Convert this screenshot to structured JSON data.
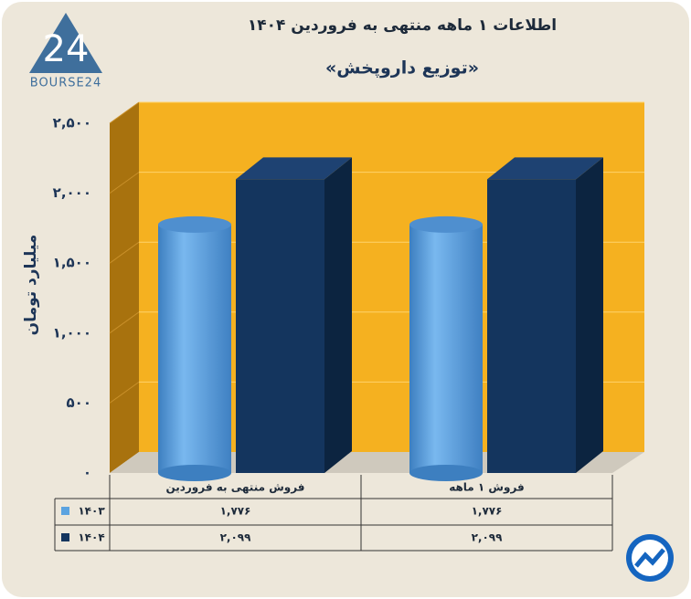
{
  "chart_data": {
    "type": "bar3d",
    "title": "اطلاعات ۱ ماهه منتهی به فروردین ۱۴۰۴",
    "subtitle": "«توزیع داروپخش»",
    "y_label": "میلیارد تومان",
    "logo": {
      "mark": "24",
      "text": "BOURSE24"
    },
    "categories": [
      "فروش منتهی به  فروردین",
      "فروش ۱  ماهه"
    ],
    "series": [
      {
        "name": "۱۴۰۳",
        "color": "#5ba3e0",
        "shape": "cylinder",
        "values": [
          1776,
          1776
        ],
        "value_labels": [
          "۱,۷۷۶",
          "۱,۷۷۶"
        ]
      },
      {
        "name": "۱۴۰۴",
        "color": "#14355e",
        "shape": "box",
        "values": [
          2099,
          2099
        ],
        "value_labels": [
          "۲,۰۹۹",
          "۲,۰۹۹"
        ]
      }
    ],
    "ylim": [
      0,
      2500
    ],
    "yticks": [
      {
        "value": 0,
        "label": "۰"
      },
      {
        "value": 500,
        "label": "۵۰۰"
      },
      {
        "value": 1000,
        "label": "۱,۰۰۰"
      },
      {
        "value": 1500,
        "label": "۱,۵۰۰"
      },
      {
        "value": 2000,
        "label": "۲,۰۰۰"
      },
      {
        "value": 2500,
        "label": "۲,۵۰۰"
      }
    ],
    "grid": true,
    "wall_color": "#f5b120"
  }
}
